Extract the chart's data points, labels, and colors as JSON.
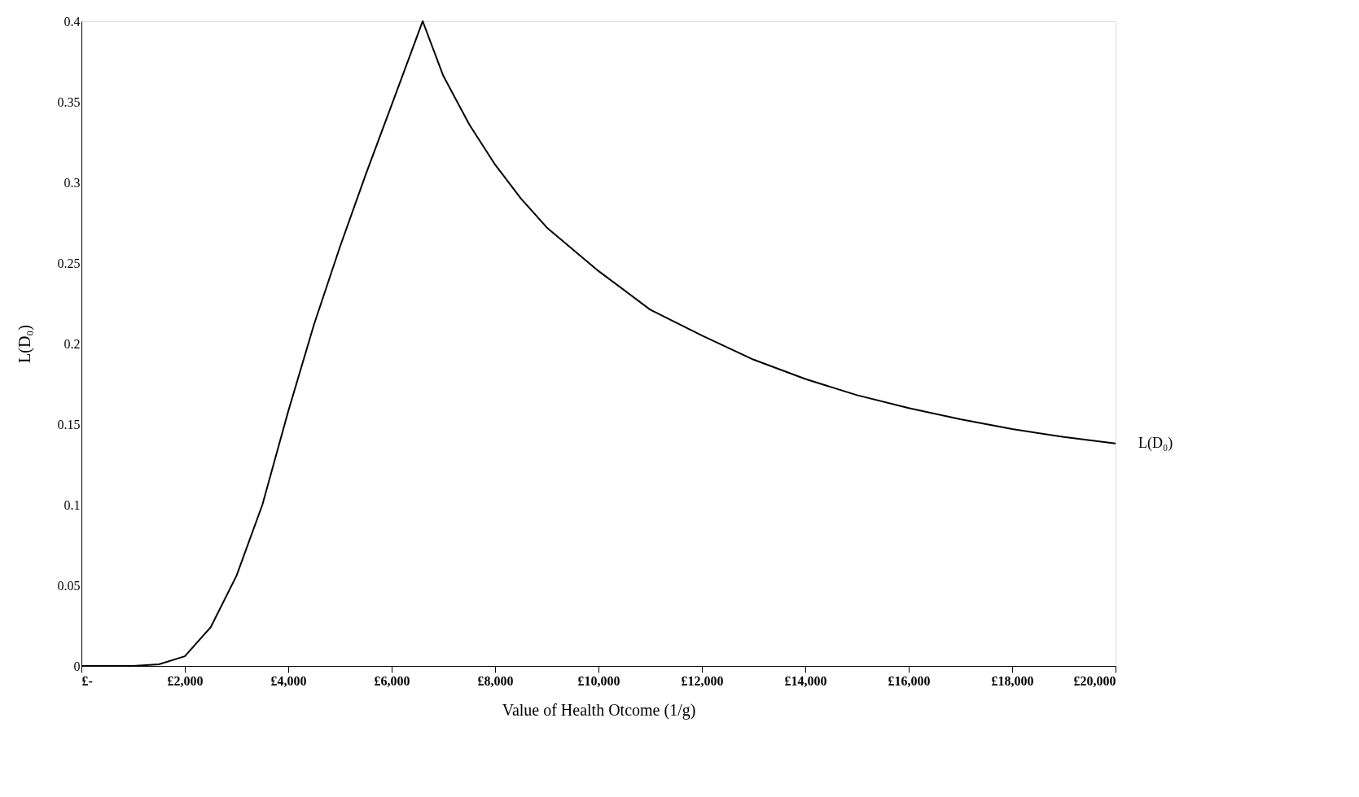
{
  "chart_data": {
    "type": "line",
    "xlabel": "Value of Health Otcome (1/g)",
    "ylabel": "L(D₀)",
    "x": [
      0,
      500,
      1000,
      1500,
      2000,
      2500,
      3000,
      3500,
      4000,
      4500,
      5000,
      5500,
      6000,
      6600,
      7000,
      7500,
      8000,
      8500,
      9000,
      10000,
      11000,
      12000,
      13000,
      14000,
      15000,
      16000,
      17000,
      18000,
      19000,
      20000
    ],
    "series": [
      {
        "name": "L(D₀)",
        "color": "#000000",
        "values": [
          0,
          0,
          0,
          0.001,
          0.006,
          0.024,
          0.056,
          0.1,
          0.158,
          0.212,
          0.26,
          0.305,
          0.348,
          0.4,
          0.366,
          0.336,
          0.311,
          0.29,
          0.272,
          0.245,
          0.221,
          0.205,
          0.19,
          0.178,
          0.168,
          0.16,
          0.153,
          0.147,
          0.142,
          0.138
        ]
      }
    ],
    "xlim": [
      0,
      20000
    ],
    "ylim": [
      0,
      0.4
    ],
    "xticks": [
      {
        "value": 0,
        "label": "£-"
      },
      {
        "value": 2000,
        "label": "£2,000"
      },
      {
        "value": 4000,
        "label": "£4,000"
      },
      {
        "value": 6000,
        "label": "£6,000"
      },
      {
        "value": 8000,
        "label": "£8,000"
      },
      {
        "value": 10000,
        "label": "£10,000"
      },
      {
        "value": 12000,
        "label": "£12,000"
      },
      {
        "value": 14000,
        "label": "£14,000"
      },
      {
        "value": 16000,
        "label": "£16,000"
      },
      {
        "value": 18000,
        "label": "£18,000"
      },
      {
        "value": 20000,
        "label": "£20,000"
      }
    ],
    "yticks": [
      0,
      0.05,
      0.1,
      0.15,
      0.2,
      0.25,
      0.3,
      0.35,
      0.4
    ],
    "grid": false,
    "legend": false,
    "marker": "none",
    "line_style": "solid"
  }
}
